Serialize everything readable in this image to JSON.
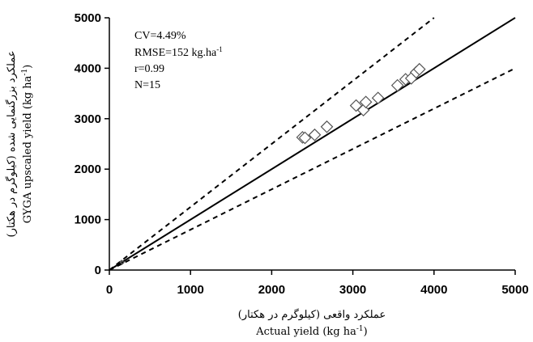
{
  "chart_data": {
    "type": "scatter",
    "xlabel_fa": "عملکرد واقعی (کیلوگرم در هکتار)",
    "xlabel_en": "Actual yield (kg ha-1)",
    "ylabel_fa": "عملکرد بزرگنمایی شده (کیلوگرم در هکتار)",
    "ylabel_en": "GYGA upscaled yield (kg ha-1)",
    "xlim": [
      0,
      5000
    ],
    "ylim": [
      0,
      5000
    ],
    "xticks": [
      "0",
      "1000",
      "2000",
      "3000",
      "4000",
      "5000"
    ],
    "yticks": [
      "0",
      "1000",
      "2000",
      "3000",
      "4000",
      "5000"
    ],
    "stats": {
      "cv": "CV=4.49%",
      "rmse": "RMSE=152 kg.ha-1",
      "r": "r=0.99",
      "n": "N=15"
    },
    "series": [
      {
        "marker": "diamond-open",
        "points": [
          [
            2380,
            2630
          ],
          [
            2410,
            2620
          ],
          [
            2530,
            2680
          ],
          [
            2680,
            2840
          ],
          [
            3040,
            3260
          ],
          [
            3130,
            3170
          ],
          [
            3160,
            3330
          ],
          [
            3310,
            3410
          ],
          [
            3550,
            3660
          ],
          [
            3650,
            3780
          ],
          [
            3720,
            3800
          ],
          [
            3780,
            3920
          ],
          [
            3820,
            3980
          ],
          [
            150,
            160
          ],
          [
            160,
            150
          ]
        ]
      }
    ],
    "lines": [
      {
        "style": "solid",
        "slope": 1.0
      },
      {
        "style": "dashed",
        "slope": 1.25
      },
      {
        "style": "dashed",
        "slope": 0.8
      }
    ]
  }
}
